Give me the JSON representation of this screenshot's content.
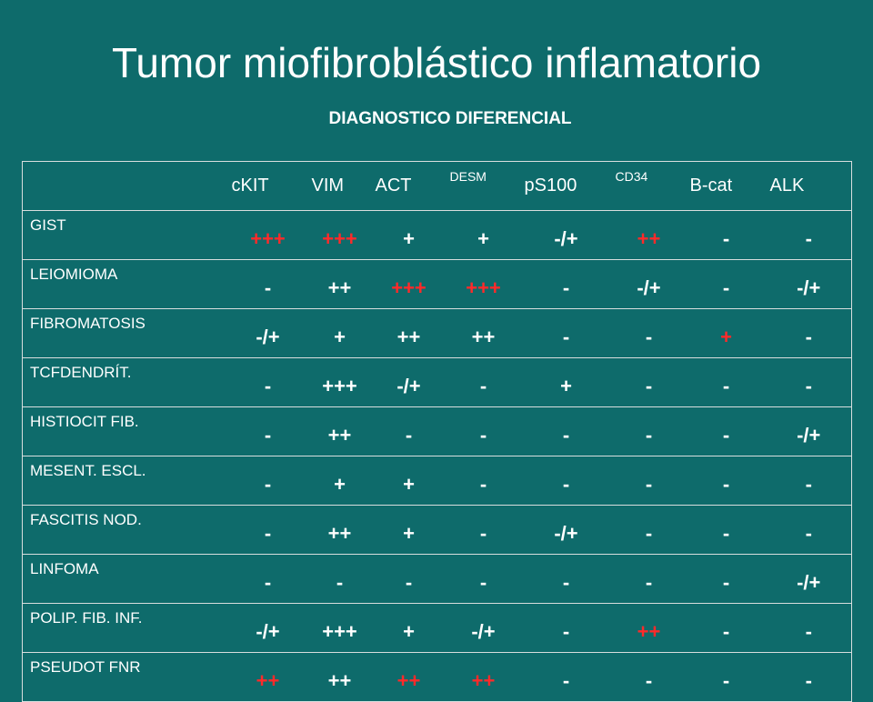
{
  "title": "Tumor miofibroblástico inflamatorio",
  "subtitle": "DIAGNOSTICO DIFERENCIAL",
  "colors": {
    "background": "#0e6b6b",
    "text": "#ffffff",
    "highlight": "#ff2a2a"
  },
  "columns": [
    "cKIT",
    "VIM",
    "ACT",
    "DESM",
    "pS100",
    "CD34",
    "B-cat",
    "ALK"
  ],
  "rows": [
    {
      "label": "GIST",
      "values": [
        "+++",
        "+++",
        "+",
        "+",
        "-/+",
        "++",
        "-",
        "-"
      ],
      "red": [
        true,
        true,
        false,
        false,
        false,
        true,
        false,
        false
      ]
    },
    {
      "label": "LEIOMIOMA",
      "values": [
        "-",
        "++",
        "+++",
        "+++",
        "-",
        "-/+",
        "-",
        "-/+"
      ],
      "red": [
        false,
        false,
        true,
        true,
        false,
        false,
        false,
        false
      ]
    },
    {
      "label": "FIBROMATOSIS",
      "values": [
        "-/+",
        "+",
        "++",
        "++",
        "-",
        "-",
        "+",
        "-"
      ],
      "red": [
        false,
        false,
        false,
        false,
        false,
        false,
        true,
        false
      ]
    },
    {
      "label": "TCFDENDRÍT.",
      "values": [
        "-",
        "+++",
        "-/+",
        "-",
        "+",
        "-",
        "-",
        "-"
      ],
      "red": [
        false,
        false,
        false,
        false,
        false,
        false,
        false,
        false
      ]
    },
    {
      "label": "HISTIOCIT FIB.",
      "values": [
        "-",
        "++",
        "-",
        "-",
        "-",
        "-",
        "-",
        "-/+"
      ],
      "red": [
        false,
        false,
        false,
        false,
        false,
        false,
        false,
        false
      ]
    },
    {
      "label": "MESENT. ESCL.",
      "values": [
        "-",
        "+",
        "+",
        "-",
        "-",
        "-",
        "-",
        "-"
      ],
      "red": [
        false,
        false,
        false,
        false,
        false,
        false,
        false,
        false
      ]
    },
    {
      "label": "FASCITIS NOD.",
      "values": [
        "-",
        "++",
        "+",
        "-",
        "-/+",
        "-",
        "-",
        "-"
      ],
      "red": [
        false,
        false,
        false,
        false,
        false,
        false,
        false,
        false
      ]
    },
    {
      "label": "LINFOMA",
      "values": [
        "-",
        "-",
        "-",
        "-",
        "-",
        "-",
        "-",
        "-/+"
      ],
      "red": [
        false,
        false,
        false,
        false,
        false,
        false,
        false,
        false
      ]
    },
    {
      "label": "POLIP. FIB. INF.",
      "values": [
        "-/+",
        "+++",
        "+",
        "-/+",
        "-",
        "++",
        "-",
        "-"
      ],
      "red": [
        false,
        false,
        false,
        false,
        false,
        true,
        false,
        false
      ]
    },
    {
      "label": "PSEUDOT FNR",
      "values": [
        "++",
        "++",
        "++",
        "++",
        "-",
        "-",
        "-",
        "-"
      ],
      "red": [
        true,
        false,
        true,
        true,
        false,
        false,
        false,
        false
      ]
    }
  ]
}
